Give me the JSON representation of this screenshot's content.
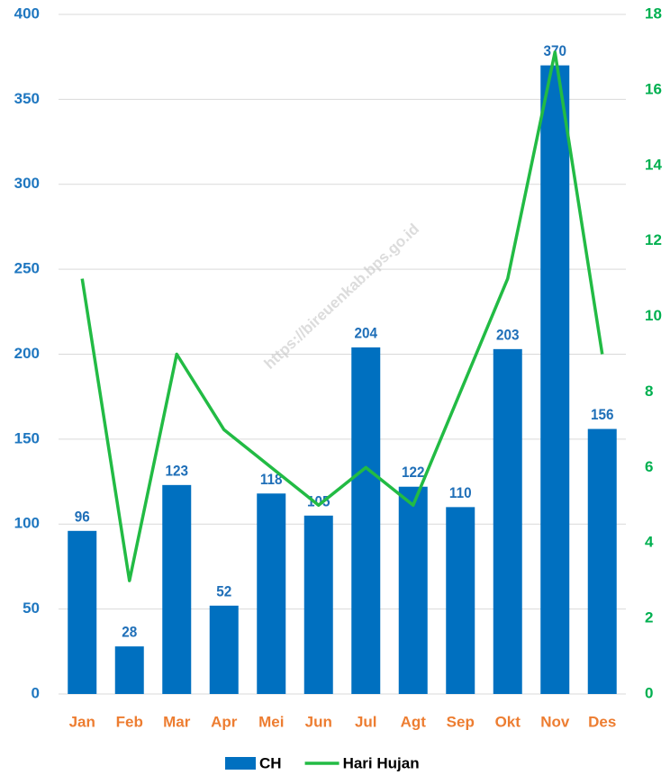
{
  "chart_data": {
    "type": "bar",
    "watermark": "https://bireuenkab.bps.go.id",
    "categories": [
      "Jan",
      "Feb",
      "Mar",
      "Apr",
      "Mei",
      "Jun",
      "Jul",
      "Agt",
      "Sep",
      "Okt",
      "Nov",
      "Des"
    ],
    "series": [
      {
        "name": "CH",
        "type": "bar",
        "color": "#0070c0",
        "values": [
          96,
          28,
          123,
          52,
          118,
          105,
          204,
          122,
          110,
          203,
          370,
          156
        ]
      },
      {
        "name": "Hari Hujan",
        "type": "line",
        "axis": "y2",
        "color": "#22bb44",
        "values": [
          11,
          3,
          9,
          7,
          6,
          5,
          6,
          5,
          8,
          11,
          17,
          9
        ]
      }
    ],
    "ylim": [
      0,
      400
    ],
    "yticks": [
      0,
      50,
      100,
      150,
      200,
      250,
      300,
      350,
      400
    ],
    "y2lim": [
      0,
      18
    ],
    "y2ticks": [
      0,
      2,
      4,
      6,
      8,
      10,
      12,
      14,
      16,
      18
    ],
    "grid": true,
    "legend": "bottom"
  }
}
